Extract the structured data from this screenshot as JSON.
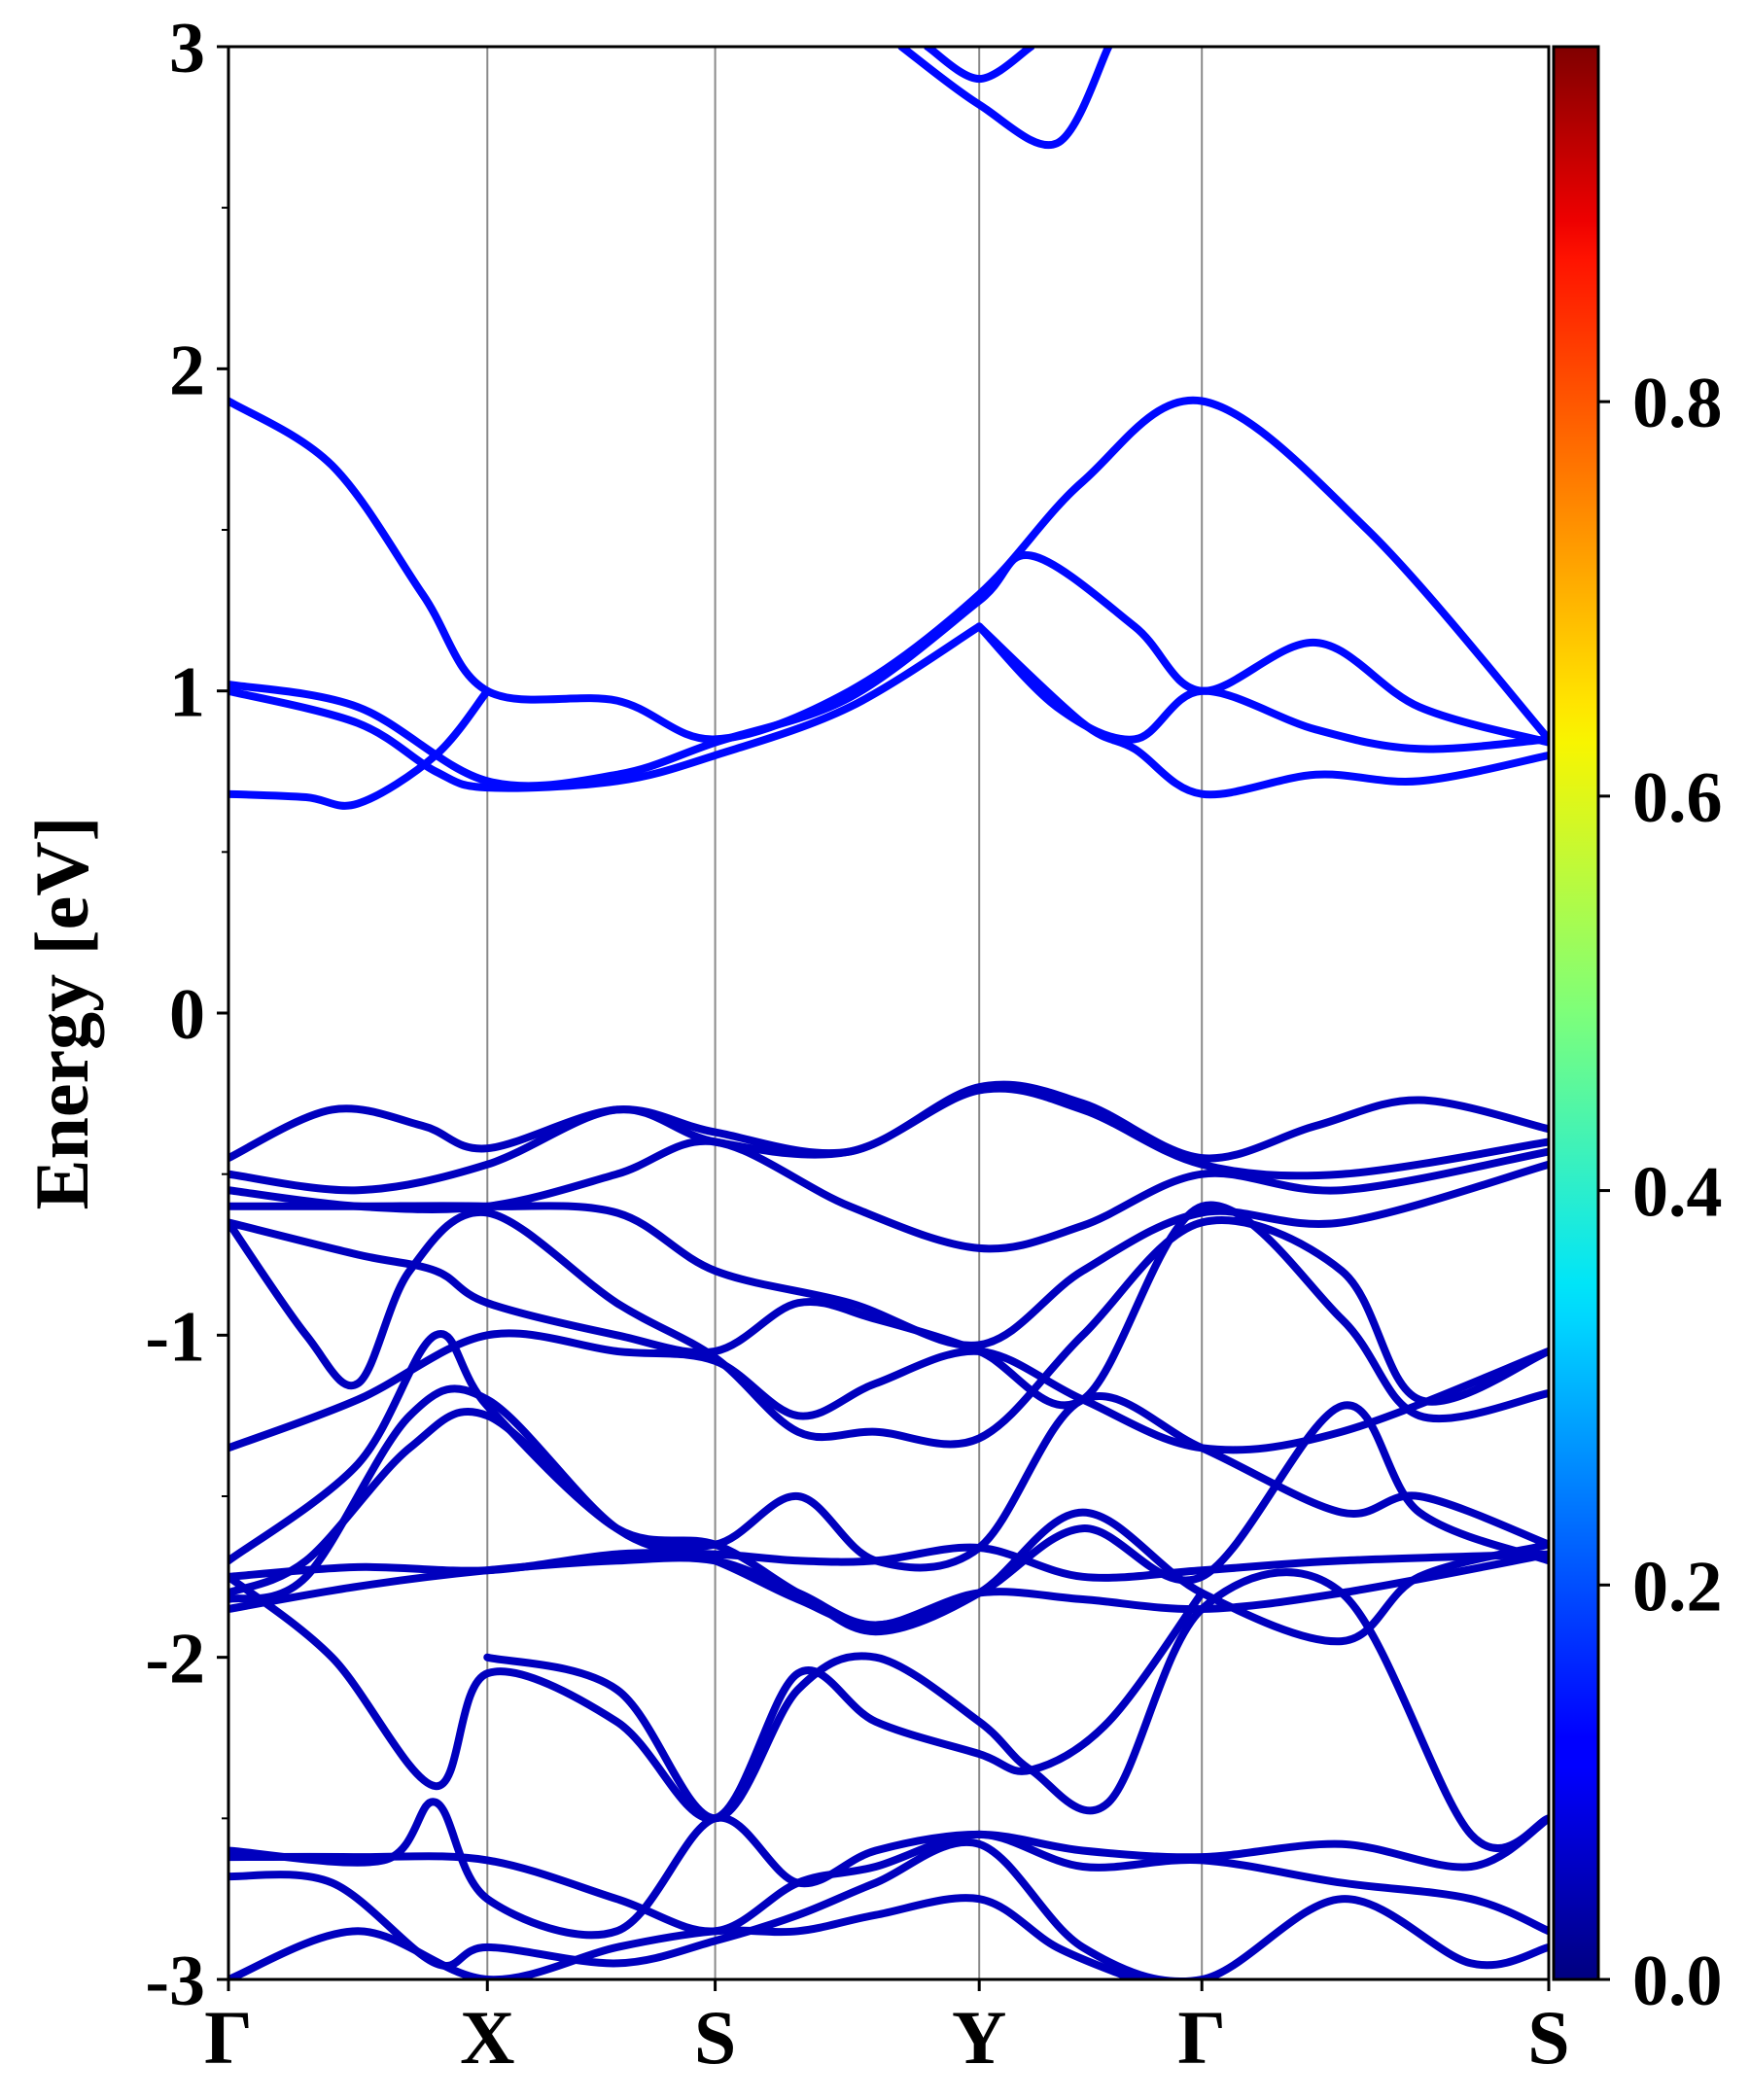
{
  "chart_data": {
    "type": "line",
    "ylabel": "Energy [eV]",
    "ylim": [
      -3,
      3
    ],
    "y_ticks": [
      "-3",
      "-2",
      "-1",
      "0",
      "1",
      "2",
      "3"
    ],
    "x_ticks": [
      "Γ",
      "X",
      "S",
      "Y",
      "Γ",
      "S"
    ],
    "x_positions": [
      0,
      1,
      1.88,
      2.9,
      3.76,
      5.1
    ],
    "colorbar": {
      "colormap": "jet",
      "range": [
        0,
        0.98
      ],
      "ticks": [
        "0.0",
        "0.2",
        "0.4",
        "0.6",
        "0.8"
      ],
      "tick_values": [
        0,
        0.2,
        0.4,
        0.6,
        0.8
      ]
    },
    "grid": "vertical lines at high-symmetry points",
    "series": [
      {
        "weight": 0.13,
        "x": [
          0,
          0.4,
          0.75,
          1,
          1.5,
          1.88,
          2.4,
          2.9,
          3.3,
          3.76,
          4.4,
          5.1
        ],
        "y": [
          1.9,
          1.7,
          1.3,
          1.0,
          0.97,
          0.85,
          1.0,
          1.3,
          1.65,
          1.9,
          1.5,
          0.85
        ]
      },
      {
        "weight": 0.13,
        "x": [
          0,
          0.5,
          0.8,
          1,
          1.5,
          1.88,
          2.4,
          2.9
        ],
        "y": [
          1.0,
          0.9,
          0.75,
          0.7,
          0.72,
          0.8,
          0.95,
          1.2
        ]
      },
      {
        "weight": 0.13,
        "x": [
          0,
          0.5,
          1,
          1.5,
          1.88,
          2.4,
          2.9,
          3.1,
          3.5,
          3.76,
          4.2,
          4.6,
          5.1
        ],
        "y": [
          1.02,
          0.95,
          0.72,
          0.74,
          0.84,
          0.98,
          1.28,
          1.42,
          1.2,
          1.0,
          1.15,
          0.95,
          0.84
        ]
      },
      {
        "weight": 0.13,
        "x": [
          0,
          0.3,
          0.5,
          0.8,
          1
        ],
        "y": [
          0.68,
          0.67,
          0.65,
          0.8,
          1.0
        ]
      },
      {
        "weight": 0.13,
        "x": [
          2.9,
          3.2,
          3.5,
          3.76,
          4.2,
          4.6,
          5.1
        ],
        "y": [
          1.2,
          0.95,
          0.85,
          1.0,
          0.88,
          0.82,
          0.85
        ]
      },
      {
        "weight": 0.13,
        "x": [
          2.9,
          3.3,
          3.5,
          3.76,
          4.2,
          4.6,
          5.1
        ],
        "y": [
          1.2,
          0.9,
          0.82,
          0.68,
          0.74,
          0.72,
          0.8
        ]
      },
      {
        "weight": 0.13,
        "x": [
          2.6,
          2.9,
          3.2,
          3.4
        ],
        "y": [
          3.0,
          2.82,
          2.7,
          3.0
        ]
      },
      {
        "weight": 0.13,
        "x": [
          2.7,
          2.9,
          3.1
        ],
        "y": [
          3.0,
          2.9,
          3.0
        ]
      },
      {
        "weight": 0.06,
        "x": [
          0,
          0.4,
          0.75,
          1,
          1.5,
          1.88,
          2.4,
          2.9,
          3.3,
          3.76,
          4.2,
          4.6,
          5.1
        ],
        "y": [
          -0.45,
          -0.3,
          -0.35,
          -0.42,
          -0.3,
          -0.37,
          -0.43,
          -0.23,
          -0.28,
          -0.45,
          -0.35,
          -0.27,
          -0.36
        ]
      },
      {
        "weight": 0.06,
        "x": [
          0,
          0.5,
          1,
          1.5,
          1.88,
          2.4,
          2.9,
          3.3,
          3.76,
          4.3,
          5.1
        ],
        "y": [
          -0.5,
          -0.55,
          -0.47,
          -0.3,
          -0.4,
          -0.43,
          -0.24,
          -0.3,
          -0.47,
          -0.5,
          -0.4
        ]
      },
      {
        "weight": 0.06,
        "x": [
          0,
          0.5,
          1,
          1.5,
          1.88,
          2.4,
          2.9,
          3.3,
          3.76,
          4.3,
          5.1
        ],
        "y": [
          -0.55,
          -0.6,
          -0.6,
          -0.5,
          -0.4,
          -0.6,
          -0.73,
          -0.66,
          -0.5,
          -0.55,
          -0.43
        ]
      },
      {
        "weight": 0.06,
        "x": [
          0,
          0.5,
          1,
          1.5,
          1.88,
          2.4,
          2.9,
          3.3,
          3.76,
          4.3,
          5.1
        ],
        "y": [
          -0.6,
          -0.6,
          -0.6,
          -0.62,
          -0.8,
          -0.9,
          -1.03,
          -0.8,
          -0.62,
          -0.65,
          -0.47
        ]
      },
      {
        "weight": 0.06,
        "x": [
          0,
          0.3,
          0.5,
          0.7,
          1,
          1.5,
          1.88,
          2.2,
          2.5,
          2.9,
          3.3,
          3.76,
          4.3,
          4.6,
          5.1
        ],
        "y": [
          -0.65,
          -1.0,
          -1.15,
          -0.8,
          -0.62,
          -0.9,
          -1.07,
          -1.3,
          -1.3,
          -1.32,
          -1.0,
          -0.65,
          -0.8,
          -1.2,
          -1.05
        ]
      },
      {
        "weight": 0.06,
        "x": [
          0,
          0.5,
          0.8,
          1,
          1.5,
          1.88,
          2.2,
          2.5,
          2.9,
          3.3,
          3.76,
          4.3,
          4.6,
          5.1
        ],
        "y": [
          -0.65,
          -0.75,
          -0.8,
          -0.9,
          -1.0,
          -1.05,
          -0.9,
          -0.95,
          -1.05,
          -1.2,
          -0.6,
          -0.95,
          -1.25,
          -1.18
        ]
      },
      {
        "weight": 0.06,
        "x": [
          0,
          0.5,
          1,
          1.5,
          1.88,
          2.2,
          2.5,
          2.9,
          3.3,
          3.76,
          4.3,
          5.1
        ],
        "y": [
          -1.35,
          -1.2,
          -1.0,
          -1.05,
          -1.08,
          -1.25,
          -1.15,
          -1.05,
          -1.2,
          -1.35,
          -1.3,
          -1.05
        ]
      },
      {
        "weight": 0.06,
        "x": [
          0,
          0.5,
          0.8,
          1,
          1.5,
          1.88,
          2.2,
          2.5,
          2.9,
          3.3,
          3.76,
          4.3,
          4.6,
          5.1
        ],
        "y": [
          -1.7,
          -1.4,
          -1.0,
          -1.22,
          -1.6,
          -1.65,
          -1.5,
          -1.7,
          -1.66,
          -1.2,
          -1.35,
          -1.55,
          -1.5,
          -1.65
        ]
      },
      {
        "weight": 0.06,
        "x": [
          0,
          0.5,
          1,
          1.5,
          1.88,
          2.2,
          2.5,
          2.9,
          3.3,
          3.76,
          4.3,
          5.1
        ],
        "y": [
          -1.75,
          -1.72,
          -1.73,
          -1.68,
          -1.68,
          -1.7,
          -1.7,
          -1.66,
          -1.75,
          -1.73,
          -1.7,
          -1.68
        ]
      },
      {
        "weight": 0.06,
        "x": [
          0,
          0.5,
          1,
          1.5,
          1.88,
          2.2,
          2.5,
          2.9,
          3.3,
          3.76,
          4.3,
          5.1
        ],
        "y": [
          -1.85,
          -1.78,
          -1.73,
          -1.7,
          -1.7,
          -1.8,
          -1.9,
          -1.8,
          -1.82,
          -1.85,
          -1.8,
          -1.68
        ]
      },
      {
        "weight": 0.06,
        "x": [
          0,
          0.3,
          0.7,
          1,
          1.5,
          1.88,
          2.2,
          2.5,
          2.9,
          3.3,
          3.76,
          4.3,
          4.6,
          5.1
        ],
        "y": [
          -1.8,
          -1.7,
          -1.35,
          -1.25,
          -1.6,
          -1.65,
          -1.8,
          -1.92,
          -1.8,
          -1.55,
          -1.8,
          -1.95,
          -1.75,
          -1.65
        ]
      },
      {
        "weight": 0.06,
        "x": [
          0,
          0.3,
          0.7,
          1,
          1.5,
          1.88,
          2.2,
          2.5,
          2.9,
          3.3,
          3.76,
          4.3,
          4.6,
          5.1
        ],
        "y": [
          -1.82,
          -1.75,
          -1.25,
          -1.2,
          -1.6,
          -1.7,
          -1.82,
          -1.9,
          -1.8,
          -1.6,
          -1.75,
          -1.22,
          -1.55,
          -1.7
        ]
      },
      {
        "weight": 0.06,
        "x": [
          0,
          0.4,
          0.8,
          1,
          1.5,
          1.88,
          2.2,
          2.5,
          2.9,
          3.1,
          3.4,
          3.76
        ],
        "y": [
          -1.75,
          -2.0,
          -2.4,
          -2.05,
          -2.2,
          -2.5,
          -2.05,
          -2.2,
          -2.3,
          -2.35,
          -2.2,
          -1.8
        ]
      },
      {
        "weight": 0.06,
        "x": [
          1,
          1.5,
          1.88,
          2.2,
          2.5,
          2.9,
          3.1,
          3.4,
          3.76,
          4.3,
          4.8,
          5.1
        ],
        "y": [
          -2.0,
          -2.1,
          -2.5,
          -2.1,
          -2.0,
          -2.2,
          -2.35,
          -2.45,
          -1.85,
          -1.8,
          -2.55,
          -2.5
        ]
      },
      {
        "weight": 0.06,
        "x": [
          0,
          0.6,
          0.8,
          1,
          1.5,
          1.88,
          2.2,
          2.5,
          2.9,
          3.3,
          3.76,
          4.3,
          4.8,
          5.1
        ],
        "y": [
          -2.6,
          -2.63,
          -2.45,
          -2.75,
          -2.85,
          -2.5,
          -2.7,
          -2.6,
          -2.55,
          -2.6,
          -2.62,
          -2.58,
          -2.65,
          -2.5
        ]
      },
      {
        "weight": 0.06,
        "x": [
          0,
          0.5,
          1,
          1.5,
          1.88,
          2.2,
          2.5,
          2.9,
          3.3,
          3.76,
          4.3,
          4.8,
          5.1
        ],
        "y": [
          -2.62,
          -2.62,
          -2.63,
          -2.75,
          -2.85,
          -2.7,
          -2.65,
          -2.55,
          -2.65,
          -2.63,
          -2.7,
          -2.75,
          -2.85
        ]
      },
      {
        "weight": 0.06,
        "x": [
          0,
          0.4,
          0.8,
          1,
          1.5,
          1.88,
          2.2,
          2.5,
          2.9,
          3.3,
          3.76,
          4.3,
          4.8,
          5.1
        ],
        "y": [
          -2.68,
          -2.7,
          -2.95,
          -2.9,
          -2.95,
          -2.88,
          -2.8,
          -2.7,
          -2.58,
          -2.9,
          -3.0,
          -2.75,
          -2.95,
          -2.9
        ]
      },
      {
        "weight": 0.06,
        "x": [
          0,
          0.5,
          1,
          1.5,
          1.88,
          2.2,
          2.5,
          2.9,
          3.2,
          3.5
        ],
        "y": [
          -3.0,
          -2.85,
          -3.0,
          -2.9,
          -2.85,
          -2.85,
          -2.8,
          -2.75,
          -2.9,
          -3.0
        ]
      }
    ]
  }
}
